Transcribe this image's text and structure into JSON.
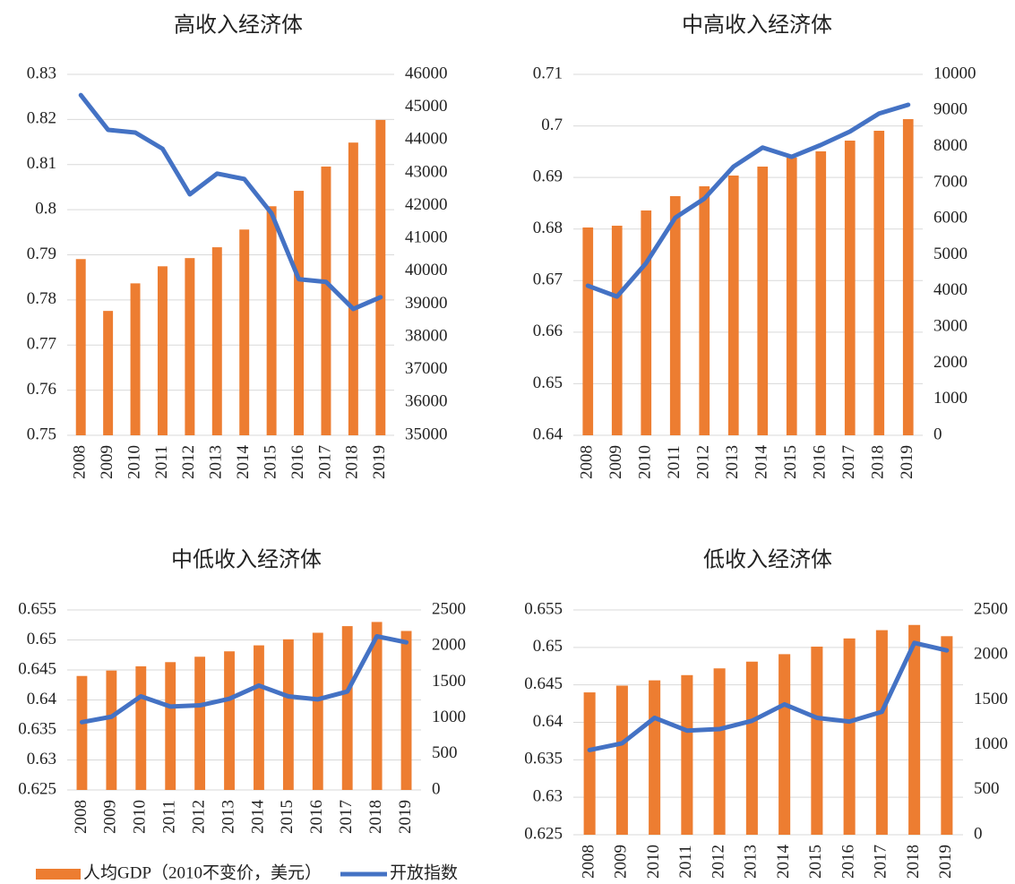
{
  "chart_data": [
    {
      "type": "bar-line",
      "title": "高收入经济体",
      "categories": [
        "2008",
        "2009",
        "2010",
        "2011",
        "2012",
        "2013",
        "2014",
        "2015",
        "2016",
        "2017",
        "2018",
        "2019"
      ],
      "series": [
        {
          "name": "人均GDP（2010不变价，美元）",
          "type": "bar",
          "axis": "y2",
          "color": "#ed7d31",
          "values": [
            40370,
            38790,
            39630,
            40150,
            40400,
            40730,
            41270,
            41980,
            42450,
            43190,
            43920,
            44610
          ]
        },
        {
          "name": "开放指数",
          "type": "line",
          "axis": "y",
          "color": "#4472c4",
          "values": [
            0.8254,
            0.8177,
            0.8171,
            0.8135,
            0.8034,
            0.808,
            0.8068,
            0.7992,
            0.7846,
            0.784,
            0.778,
            0.7806
          ]
        }
      ],
      "ylim": [
        0.75,
        0.83
      ],
      "yticks": [
        0.75,
        0.76,
        0.77,
        0.78,
        0.79,
        0.8,
        0.81,
        0.82,
        0.83
      ],
      "y2lim": [
        35000,
        46000
      ],
      "y2ticks": [
        35000,
        36000,
        37000,
        38000,
        39000,
        40000,
        41000,
        42000,
        43000,
        44000,
        45000,
        46000
      ]
    },
    {
      "type": "bar-line",
      "title": "中高收入经济体",
      "categories": [
        "2008",
        "2009",
        "2010",
        "2011",
        "2012",
        "2013",
        "2014",
        "2015",
        "2016",
        "2017",
        "2018",
        "2019"
      ],
      "series": [
        {
          "type": "bar",
          "axis": "y2",
          "color": "#ed7d31",
          "values": [
            5757,
            5806,
            6228,
            6625,
            6898,
            7196,
            7444,
            7692,
            7866,
            8164,
            8437,
            8759
          ]
        },
        {
          "type": "line",
          "axis": "y",
          "color": "#4472c4",
          "values": [
            0.669,
            0.6669,
            0.6734,
            0.6822,
            0.6859,
            0.6921,
            0.6958,
            0.694,
            0.6963,
            0.6989,
            0.7024,
            0.7041
          ]
        }
      ],
      "ylim": [
        0.64,
        0.71
      ],
      "yticks": [
        0.64,
        0.65,
        0.66,
        0.67,
        0.68,
        0.69,
        0.7,
        0.71
      ],
      "y2lim": [
        0,
        10000
      ],
      "y2ticks": [
        0,
        1000,
        2000,
        3000,
        4000,
        5000,
        6000,
        7000,
        8000,
        9000,
        10000
      ]
    },
    {
      "type": "bar-line",
      "title": "中低收入经济体",
      "categories": [
        "2008",
        "2009",
        "2010",
        "2011",
        "2012",
        "2013",
        "2014",
        "2015",
        "2016",
        "2017",
        "2018",
        "2019"
      ],
      "series": [
        {
          "type": "bar",
          "axis": "y2",
          "color": "#ed7d31",
          "values": [
            1583,
            1658,
            1717,
            1775,
            1850,
            1925,
            2008,
            2092,
            2183,
            2275,
            2333,
            2208
          ]
        },
        {
          "type": "line",
          "axis": "y",
          "color": "#4472c4",
          "values": [
            0.6363,
            0.6372,
            0.6406,
            0.6389,
            0.6391,
            0.6402,
            0.6424,
            0.6406,
            0.6401,
            0.6414,
            0.6506,
            0.6496
          ]
        }
      ],
      "ylim": [
        0.625,
        0.655
      ],
      "yticks": [
        0.625,
        0.63,
        0.635,
        0.64,
        0.645,
        0.65,
        0.655
      ],
      "y2lim": [
        0,
        2500
      ],
      "y2ticks": [
        0,
        500,
        1000,
        1500,
        2000,
        2500
      ]
    },
    {
      "type": "bar-line",
      "title": "低收入经济体",
      "categories": [
        "2008",
        "2009",
        "2010",
        "2011",
        "2012",
        "2013",
        "2014",
        "2015",
        "2016",
        "2017",
        "2018",
        "2019"
      ],
      "series": [
        {
          "type": "bar",
          "axis": "y2",
          "color": "#ed7d31",
          "values": [
            1583,
            1658,
            1717,
            1775,
            1850,
            1925,
            2008,
            2092,
            2183,
            2275,
            2333,
            2208
          ]
        },
        {
          "type": "line",
          "axis": "y",
          "color": "#4472c4",
          "values": [
            0.6363,
            0.6372,
            0.6406,
            0.6389,
            0.6391,
            0.6402,
            0.6424,
            0.6406,
            0.6401,
            0.6414,
            0.6506,
            0.6496
          ]
        }
      ],
      "ylim": [
        0.625,
        0.655
      ],
      "yticks": [
        0.625,
        0.63,
        0.635,
        0.64,
        0.645,
        0.65,
        0.655
      ],
      "y2lim": [
        0,
        2500
      ],
      "y2ticks": [
        0,
        500,
        1000,
        1500,
        2000,
        2500
      ]
    }
  ]
}
